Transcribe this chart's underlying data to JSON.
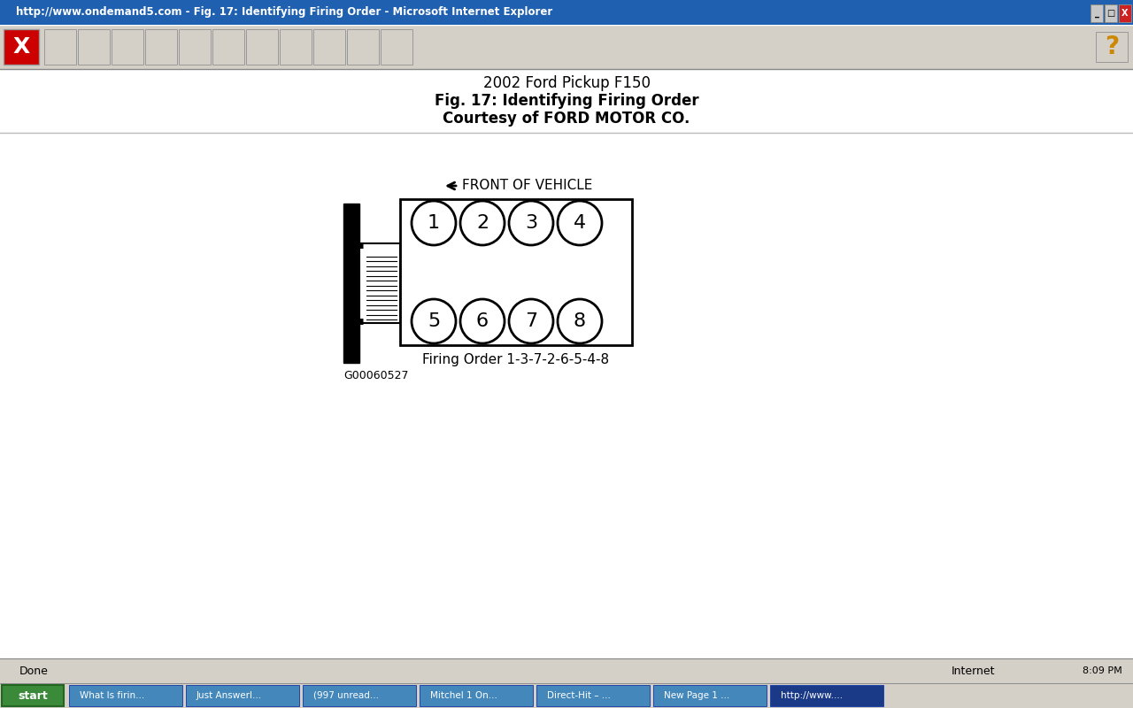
{
  "title_line1": "2002 Ford Pickup F150",
  "title_line2": "Fig. 17: Identifying Firing Order",
  "title_line3": "Courtesy of FORD MOTOR CO.",
  "firing_order_label": "Firing Order 1-3-7-2-6-5-4-8",
  "figure_id": "G00060527",
  "cylinders_top": [
    "1",
    "2",
    "3",
    "4"
  ],
  "cylinders_bottom": [
    "5",
    "6",
    "7",
    "8"
  ],
  "titlebar_color": "#1c6ab5",
  "toolbar_bg": "#c8c8c8",
  "content_bg": "#ffffff",
  "statusbar_bg": "#c8c8c8",
  "taskbar_bg": "#2a7a2a",
  "taskbar_item_bg": "#4488cc",
  "taskbar_item_active": "#1a4488"
}
